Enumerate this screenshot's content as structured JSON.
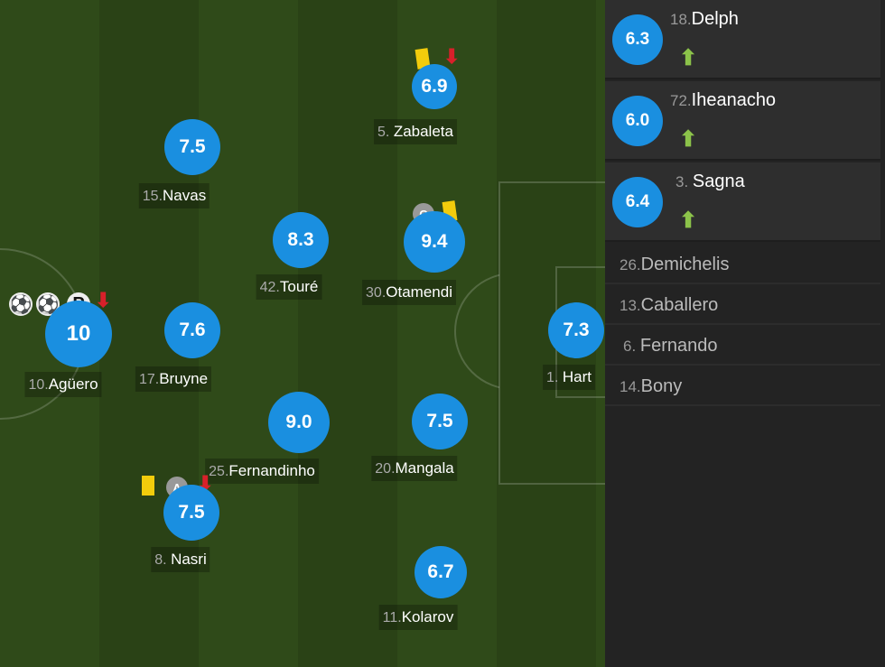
{
  "starters": [
    {
      "num": "10.",
      "name": "Agüero",
      "rating": "10"
    },
    {
      "num": "17.",
      "name": "Bruyne",
      "rating": "7.6"
    },
    {
      "num": "15.",
      "name": "Navas",
      "rating": "7.5"
    },
    {
      "num": "42.",
      "name": "Touré",
      "rating": "8.3"
    },
    {
      "num": "5. ",
      "name": "Zabaleta",
      "rating": "6.9"
    },
    {
      "num": "30.",
      "name": "Otamendi",
      "rating": "9.4"
    },
    {
      "num": "25.",
      "name": "Fernandinho",
      "rating": "9.0"
    },
    {
      "num": "20.",
      "name": "Mangala",
      "rating": "7.5"
    },
    {
      "num": "8. ",
      "name": "Nasri",
      "rating": "7.5"
    },
    {
      "num": "11.",
      "name": "Kolarov",
      "rating": "6.7"
    },
    {
      "num": "1. ",
      "name": "Hart",
      "rating": "7.3"
    }
  ],
  "badges": {
    "penalty": "P",
    "captain": "C",
    "assist": "A",
    "down": "⬇",
    "up": "⬆",
    "ball": "⚽"
  },
  "subs_used": [
    {
      "num": "18.",
      "name": "Delph",
      "rating": "6.3"
    },
    {
      "num": "72.",
      "name": "Iheanacho",
      "rating": "6.0"
    },
    {
      "num": "3. ",
      "name": "Sagna",
      "rating": "6.4"
    }
  ],
  "subs_unused": [
    {
      "num": "26.",
      "name": "Demichelis"
    },
    {
      "num": "13.",
      "name": "Caballero"
    },
    {
      "num": "6. ",
      "name": "Fernando"
    },
    {
      "num": "14.",
      "name": "Bony"
    }
  ],
  "colors": {
    "rating": "#1a8fe0",
    "yellow_card": "#f2cc0c",
    "sub_off": "#d8202a",
    "sub_on": "#8cc34a"
  }
}
